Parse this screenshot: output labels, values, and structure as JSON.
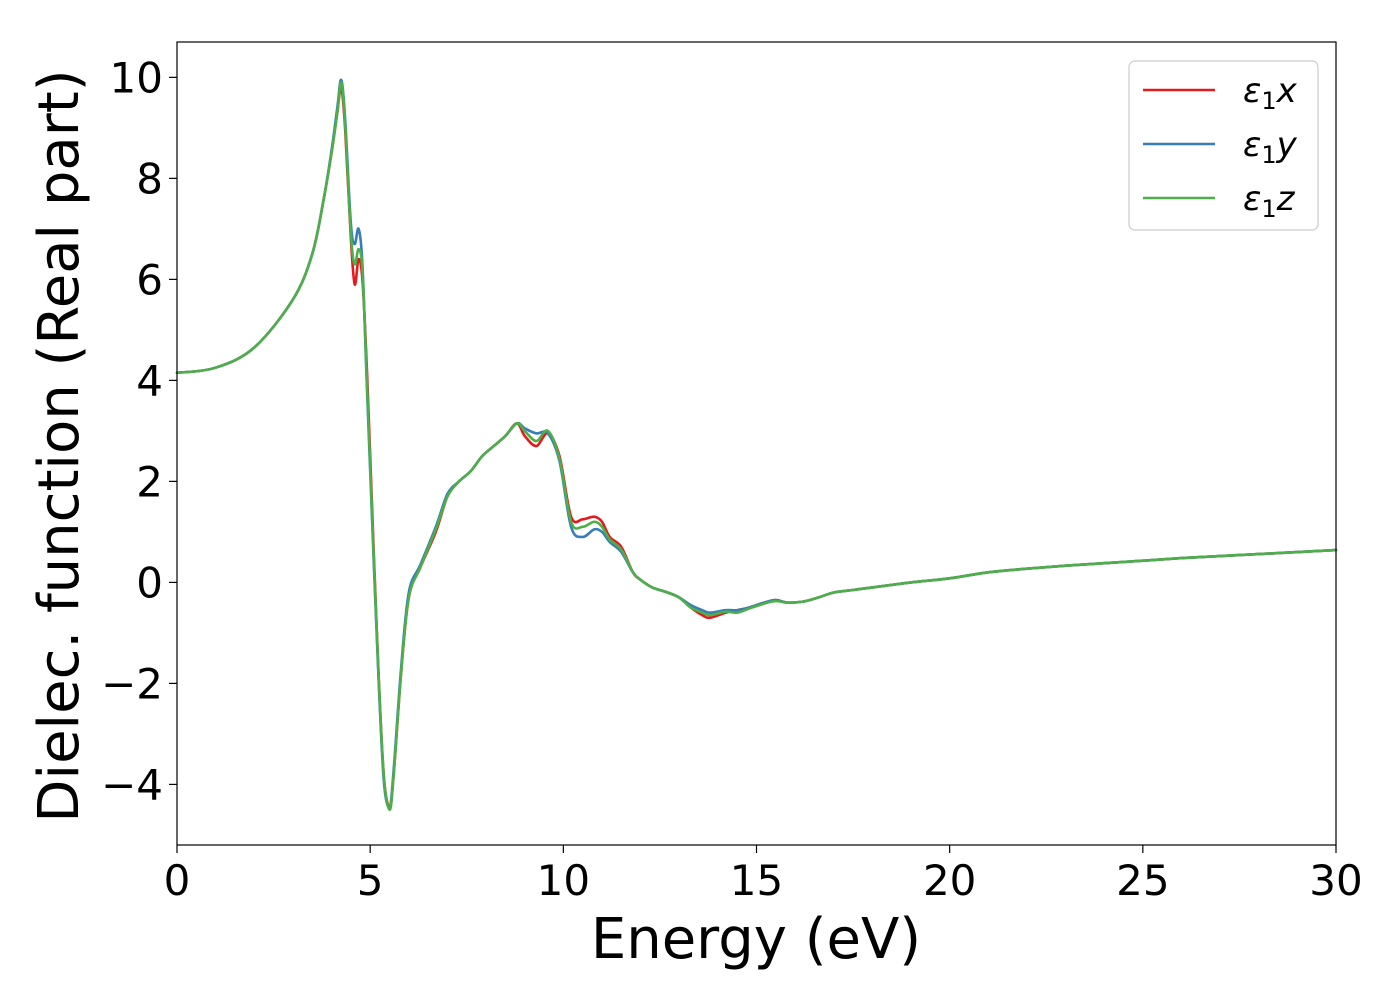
{
  "chart_data": {
    "type": "line",
    "xlabel": "Energy (eV)",
    "ylabel": "Dielec. function (Real part)",
    "xlim": [
      0,
      30
    ],
    "ylim": [
      -5.2,
      10.7
    ],
    "xticks": [
      0,
      5,
      10,
      15,
      20,
      25,
      30
    ],
    "yticks": [
      -4,
      -2,
      0,
      2,
      4,
      6,
      8,
      10
    ],
    "tick_labels": {
      "x": [
        "0",
        "5",
        "10",
        "15",
        "20",
        "25",
        "30"
      ],
      "y": [
        "−4",
        "−2",
        "0",
        "2",
        "4",
        "6",
        "8",
        "10"
      ]
    },
    "grid": false,
    "legend": "top-right",
    "series": [
      {
        "name": "ε₁x",
        "legend_base": "ε",
        "legend_sub": "1",
        "legend_var": "x",
        "color": "#e41a1c",
        "x": [
          0,
          1,
          2,
          3,
          3.5,
          3.8,
          4.0,
          4.15,
          4.25,
          4.35,
          4.5,
          4.6,
          4.7,
          4.8,
          4.9,
          5.0,
          5.2,
          5.35,
          5.5,
          5.6,
          5.8,
          6.0,
          6.3,
          6.7,
          7.0,
          7.3,
          7.6,
          7.9,
          8.2,
          8.5,
          8.8,
          9.0,
          9.3,
          9.6,
          9.9,
          10.2,
          10.5,
          10.8,
          11.0,
          11.2,
          11.5,
          11.8,
          12.0,
          12.3,
          12.7,
          13.0,
          13.3,
          13.6,
          13.8,
          14.2,
          14.5,
          14.8,
          15.2,
          15.5,
          15.8,
          16.2,
          16.6,
          17.0,
          17.5,
          18.0,
          19.0,
          20.0,
          21.0,
          22.0,
          23.0,
          24.0,
          25.0,
          26.0,
          27.0,
          28.0,
          29.0,
          30.0
        ],
        "y": [
          4.15,
          4.25,
          4.65,
          5.6,
          6.5,
          7.6,
          8.5,
          9.3,
          9.8,
          9.0,
          6.8,
          5.9,
          6.4,
          6.0,
          4.5,
          2.5,
          -1.5,
          -3.8,
          -4.45,
          -3.9,
          -1.8,
          -0.3,
          0.3,
          1.0,
          1.7,
          2.0,
          2.2,
          2.5,
          2.7,
          2.9,
          3.15,
          2.9,
          2.7,
          2.95,
          2.5,
          1.3,
          1.25,
          1.3,
          1.2,
          0.9,
          0.7,
          0.2,
          0.05,
          -0.1,
          -0.2,
          -0.3,
          -0.5,
          -0.65,
          -0.7,
          -0.6,
          -0.55,
          -0.5,
          -0.4,
          -0.35,
          -0.4,
          -0.38,
          -0.3,
          -0.2,
          -0.15,
          -0.1,
          0.0,
          0.08,
          0.2,
          0.27,
          0.33,
          0.38,
          0.43,
          0.48,
          0.52,
          0.56,
          0.6,
          0.64
        ]
      },
      {
        "name": "ε₁y",
        "legend_base": "ε",
        "legend_sub": "1",
        "legend_var": "y",
        "color": "#377eb8",
        "x": [
          0,
          1,
          2,
          3,
          3.5,
          3.8,
          4.0,
          4.15,
          4.25,
          4.35,
          4.5,
          4.6,
          4.7,
          4.8,
          4.9,
          5.0,
          5.2,
          5.35,
          5.5,
          5.6,
          5.8,
          6.0,
          6.3,
          6.7,
          7.0,
          7.3,
          7.6,
          7.9,
          8.2,
          8.5,
          8.8,
          9.0,
          9.3,
          9.6,
          9.9,
          10.2,
          10.5,
          10.8,
          11.0,
          11.2,
          11.5,
          11.8,
          12.0,
          12.3,
          12.7,
          13.0,
          13.3,
          13.6,
          13.8,
          14.2,
          14.5,
          14.8,
          15.2,
          15.5,
          15.8,
          16.2,
          16.6,
          17.0,
          17.5,
          18.0,
          19.0,
          20.0,
          21.0,
          22.0,
          23.0,
          24.0,
          25.0,
          26.0,
          27.0,
          28.0,
          29.0,
          30.0
        ],
        "y": [
          4.15,
          4.25,
          4.65,
          5.6,
          6.5,
          7.6,
          8.55,
          9.4,
          9.95,
          9.2,
          7.1,
          6.7,
          7.0,
          6.3,
          4.2,
          2.2,
          -1.6,
          -3.9,
          -4.45,
          -3.8,
          -1.7,
          -0.2,
          0.35,
          1.1,
          1.75,
          2.0,
          2.2,
          2.5,
          2.7,
          2.9,
          3.15,
          3.05,
          2.95,
          2.95,
          2.4,
          1.1,
          0.9,
          1.05,
          1.0,
          0.8,
          0.6,
          0.2,
          0.05,
          -0.1,
          -0.2,
          -0.3,
          -0.45,
          -0.55,
          -0.6,
          -0.55,
          -0.55,
          -0.5,
          -0.4,
          -0.35,
          -0.4,
          -0.38,
          -0.3,
          -0.2,
          -0.15,
          -0.1,
          0.0,
          0.08,
          0.2,
          0.27,
          0.33,
          0.38,
          0.43,
          0.48,
          0.52,
          0.56,
          0.6,
          0.64
        ]
      },
      {
        "name": "ε₁z",
        "legend_base": "ε",
        "legend_sub": "1",
        "legend_var": "z",
        "color": "#4daf4a",
        "x": [
          0,
          1,
          2,
          3,
          3.5,
          3.8,
          4.0,
          4.15,
          4.25,
          4.35,
          4.5,
          4.6,
          4.7,
          4.8,
          4.9,
          5.0,
          5.2,
          5.35,
          5.5,
          5.6,
          5.8,
          6.0,
          6.3,
          6.7,
          7.0,
          7.3,
          7.6,
          7.9,
          8.2,
          8.5,
          8.8,
          9.0,
          9.3,
          9.6,
          9.9,
          10.2,
          10.5,
          10.8,
          11.0,
          11.2,
          11.5,
          11.8,
          12.0,
          12.3,
          12.7,
          13.0,
          13.3,
          13.6,
          13.8,
          14.2,
          14.5,
          14.8,
          15.2,
          15.5,
          15.8,
          16.2,
          16.6,
          17.0,
          17.5,
          18.0,
          19.0,
          20.0,
          21.0,
          22.0,
          23.0,
          24.0,
          25.0,
          26.0,
          27.0,
          28.0,
          29.0,
          30.0
        ],
        "y": [
          4.15,
          4.25,
          4.65,
          5.6,
          6.5,
          7.6,
          8.5,
          9.3,
          9.9,
          9.1,
          6.9,
          6.3,
          6.6,
          6.2,
          4.3,
          2.3,
          -1.5,
          -3.8,
          -4.5,
          -3.9,
          -1.8,
          -0.3,
          0.3,
          1.05,
          1.7,
          2.0,
          2.2,
          2.5,
          2.7,
          2.9,
          3.15,
          3.0,
          2.8,
          3.0,
          2.45,
          1.2,
          1.1,
          1.2,
          1.1,
          0.85,
          0.65,
          0.2,
          0.05,
          -0.1,
          -0.2,
          -0.3,
          -0.5,
          -0.6,
          -0.65,
          -0.58,
          -0.6,
          -0.52,
          -0.42,
          -0.37,
          -0.4,
          -0.38,
          -0.3,
          -0.2,
          -0.15,
          -0.1,
          0.0,
          0.08,
          0.2,
          0.27,
          0.33,
          0.38,
          0.43,
          0.48,
          0.52,
          0.56,
          0.6,
          0.64
        ]
      }
    ]
  }
}
